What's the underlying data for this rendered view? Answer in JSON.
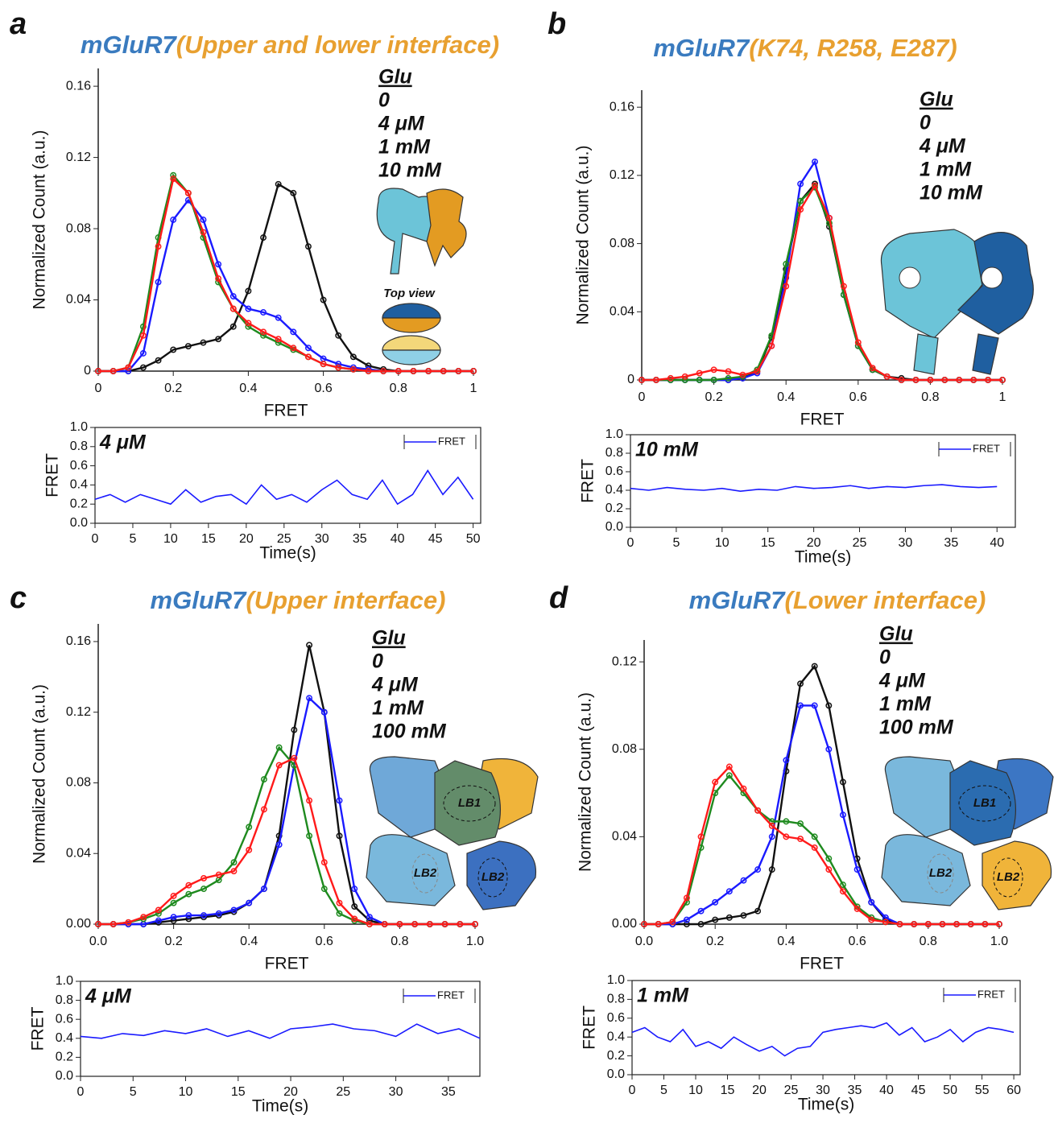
{
  "chart_data": [
    {
      "type": "line",
      "panel": "a",
      "title": "mGluR7",
      "title_color": "#3a7bbf",
      "title_detail": "(Upper and lower interface)",
      "title_detail_color": "#e8a030",
      "xlabel": "FRET",
      "ylabel": "Normalized Count (a.u.)",
      "legend_title": "Glu",
      "annotations": [
        "Top view"
      ],
      "x": [
        0,
        0.04,
        0.08,
        0.12,
        0.16,
        0.2,
        0.24,
        0.28,
        0.32,
        0.36,
        0.4,
        0.44,
        0.48,
        0.52,
        0.56,
        0.6,
        0.64,
        0.68,
        0.72,
        0.76,
        0.8,
        0.84,
        0.88,
        0.92,
        0.96,
        1
      ],
      "xlim": [
        0,
        1
      ],
      "xticks": [
        0,
        0.2,
        0.4,
        0.6,
        0.8,
        1
      ],
      "ylim": [
        0,
        0.17
      ],
      "yticks": [
        0,
        0.04,
        0.08,
        0.12,
        0.16
      ],
      "series": [
        {
          "name": "0",
          "color": "#111111",
          "values": [
            0,
            0,
            0,
            0.002,
            0.006,
            0.012,
            0.014,
            0.016,
            0.018,
            0.025,
            0.045,
            0.075,
            0.105,
            0.1,
            0.07,
            0.04,
            0.02,
            0.008,
            0.003,
            0.001,
            0,
            0,
            0,
            0,
            0,
            0
          ]
        },
        {
          "name": "4 μM",
          "color": "#1a1aff",
          "values": [
            0,
            0,
            0,
            0.01,
            0.05,
            0.085,
            0.096,
            0.085,
            0.06,
            0.042,
            0.035,
            0.033,
            0.03,
            0.022,
            0.013,
            0.007,
            0.004,
            0.002,
            0.001,
            0,
            0,
            0,
            0,
            0,
            0,
            0
          ]
        },
        {
          "name": "1 mM",
          "color": "#1e8a1e",
          "values": [
            0,
            0,
            0.002,
            0.025,
            0.075,
            0.11,
            0.1,
            0.075,
            0.05,
            0.035,
            0.025,
            0.02,
            0.016,
            0.012,
            0.008,
            0.004,
            0.002,
            0.001,
            0,
            0,
            0,
            0,
            0,
            0,
            0,
            0
          ]
        },
        {
          "name": "10 mM",
          "color": "#ff1a1a",
          "values": [
            0,
            0,
            0.002,
            0.02,
            0.07,
            0.108,
            0.1,
            0.078,
            0.052,
            0.035,
            0.027,
            0.022,
            0.018,
            0.013,
            0.008,
            0.004,
            0.002,
            0.001,
            0,
            0,
            0,
            0,
            0,
            0,
            0,
            0
          ]
        }
      ]
    },
    {
      "type": "trace",
      "label": "4 μM",
      "label_color": "#3a4fc0",
      "xlabel": "Time(s)",
      "ylabel": "FRET",
      "x": [
        0,
        2,
        4,
        6,
        8,
        10,
        12,
        14,
        16,
        18,
        20,
        22,
        24,
        26,
        28,
        30,
        32,
        34,
        36,
        38,
        40,
        42,
        44,
        46,
        48,
        50
      ],
      "xlim": [
        0,
        51
      ],
      "xticks": [
        0,
        5,
        10,
        15,
        20,
        25,
        30,
        35,
        40,
        45,
        50
      ],
      "ylim": [
        0,
        1
      ],
      "yticks": [
        {
          "value": 0,
          "label": "0.0"
        },
        0.2,
        0.4,
        0.6,
        0.8,
        {
          "value": 1,
          "label": "1.0"
        }
      ],
      "series": [
        {
          "name": "FRET",
          "color": "#1a1aff",
          "values": [
            0.25,
            0.3,
            0.22,
            0.3,
            0.25,
            0.2,
            0.35,
            0.22,
            0.28,
            0.3,
            0.2,
            0.4,
            0.25,
            0.3,
            0.22,
            0.35,
            0.45,
            0.3,
            0.25,
            0.45,
            0.2,
            0.3,
            0.55,
            0.3,
            0.48,
            0.25
          ]
        }
      ]
    },
    {
      "type": "line",
      "panel": "b",
      "title": "mGluR7",
      "title_color": "#3a7bbf",
      "title_detail": "(K74, R258, E287)",
      "title_detail_color": "#e8a030",
      "xlabel": "FRET",
      "ylabel": "Normalized Count (a.u.)",
      "legend_title": "Glu",
      "annotations": [],
      "x": [
        0,
        0.04,
        0.08,
        0.12,
        0.16,
        0.2,
        0.24,
        0.28,
        0.32,
        0.36,
        0.4,
        0.44,
        0.48,
        0.52,
        0.56,
        0.6,
        0.64,
        0.68,
        0.72,
        0.76,
        0.8,
        0.84,
        0.88,
        0.92,
        0.96,
        1
      ],
      "xlim": [
        0,
        1
      ],
      "xticks": [
        0,
        0.2,
        0.4,
        0.6,
        0.8,
        1
      ],
      "ylim": [
        0,
        0.17
      ],
      "yticks": [
        0,
        0.04,
        0.08,
        0.12,
        0.16
      ],
      "series": [
        {
          "name": "0",
          "color": "#111111",
          "values": [
            0,
            0,
            0,
            0,
            0,
            0,
            0,
            0.001,
            0.005,
            0.025,
            0.065,
            0.105,
            0.115,
            0.09,
            0.05,
            0.02,
            0.006,
            0.002,
            0.001,
            0,
            0,
            0,
            0,
            0,
            0,
            0
          ]
        },
        {
          "name": "4 μM",
          "color": "#1a1aff",
          "values": [
            0,
            0,
            0,
            0,
            0,
            0,
            0,
            0.001,
            0.004,
            0.02,
            0.06,
            0.115,
            0.128,
            0.095,
            0.05,
            0.02,
            0.006,
            0.002,
            0,
            0,
            0,
            0,
            0,
            0,
            0,
            0
          ]
        },
        {
          "name": "1 mM",
          "color": "#1e8a1e",
          "values": [
            0,
            0,
            0,
            0,
            0,
            0,
            0.001,
            0.002,
            0.006,
            0.026,
            0.068,
            0.105,
            0.113,
            0.092,
            0.05,
            0.02,
            0.006,
            0.002,
            0,
            0,
            0,
            0,
            0,
            0,
            0,
            0
          ]
        },
        {
          "name": "10 mM",
          "color": "#ff1a1a",
          "values": [
            0,
            0,
            0.001,
            0.002,
            0.004,
            0.006,
            0.005,
            0.003,
            0.005,
            0.02,
            0.055,
            0.1,
            0.114,
            0.095,
            0.055,
            0.022,
            0.007,
            0.002,
            0,
            0,
            0,
            0,
            0,
            0,
            0,
            0
          ]
        }
      ]
    },
    {
      "type": "trace",
      "label": "10 mM",
      "label_color": "#ff1a1a",
      "xlabel": "Time(s)",
      "ylabel": "FRET",
      "x": [
        0,
        2,
        4,
        6,
        8,
        10,
        12,
        14,
        16,
        18,
        20,
        22,
        24,
        26,
        28,
        30,
        32,
        34,
        36,
        38,
        40
      ],
      "xlim": [
        0,
        42
      ],
      "xticks": [
        0,
        5,
        10,
        15,
        20,
        25,
        30,
        35,
        40
      ],
      "ylim": [
        0,
        1
      ],
      "yticks": [
        {
          "value": 0,
          "label": "0.0"
        },
        0.2,
        0.4,
        0.6,
        0.8,
        {
          "value": 1,
          "label": "1.0"
        }
      ],
      "series": [
        {
          "name": "FRET",
          "color": "#1a1aff",
          "values": [
            0.42,
            0.4,
            0.43,
            0.41,
            0.4,
            0.42,
            0.39,
            0.41,
            0.4,
            0.44,
            0.42,
            0.43,
            0.45,
            0.42,
            0.44,
            0.43,
            0.45,
            0.46,
            0.44,
            0.43,
            0.44
          ]
        }
      ]
    },
    {
      "type": "line",
      "panel": "c",
      "title": "mGluR7",
      "title_color": "#3a7bbf",
      "title_detail": "(Upper interface)",
      "title_detail_color": "#e8a030",
      "xlabel": "FRET",
      "ylabel": "Normalized Count (a.u.)",
      "legend_title": "Glu",
      "annotations": [
        "LB1",
        "LB2",
        "LB2"
      ],
      "x": [
        0,
        0.04,
        0.08,
        0.12,
        0.16,
        0.2,
        0.24,
        0.28,
        0.32,
        0.36,
        0.4,
        0.44,
        0.48,
        0.52,
        0.56,
        0.6,
        0.64,
        0.68,
        0.72,
        0.76,
        0.8,
        0.84,
        0.88,
        0.92,
        0.96,
        1
      ],
      "xlim": [
        0,
        1
      ],
      "xticks": [
        {
          "value": 0,
          "label": "0.0"
        },
        0.2,
        0.4,
        0.6,
        0.8,
        {
          "value": 1,
          "label": "1.0"
        }
      ],
      "ylim": [
        0,
        0.17
      ],
      "yticks": [
        {
          "value": 0,
          "label": "0.00"
        },
        0.04,
        0.08,
        0.12,
        0.16
      ],
      "series": [
        {
          "name": "0",
          "color": "#111111",
          "values": [
            0,
            0,
            0,
            0,
            0.001,
            0.002,
            0.003,
            0.004,
            0.005,
            0.007,
            0.012,
            0.02,
            0.05,
            0.11,
            0.158,
            0.12,
            0.05,
            0.01,
            0.002,
            0,
            0,
            0,
            0,
            0,
            0,
            0
          ]
        },
        {
          "name": "4 μM",
          "color": "#1a1aff",
          "values": [
            0,
            0,
            0,
            0,
            0.002,
            0.004,
            0.005,
            0.005,
            0.006,
            0.008,
            0.012,
            0.02,
            0.045,
            0.09,
            0.128,
            0.12,
            0.07,
            0.02,
            0.004,
            0,
            0,
            0,
            0,
            0,
            0,
            0
          ]
        },
        {
          "name": "1 mM",
          "color": "#1e8a1e",
          "values": [
            0,
            0,
            0.001,
            0.003,
            0.006,
            0.012,
            0.017,
            0.02,
            0.025,
            0.035,
            0.055,
            0.082,
            0.1,
            0.09,
            0.05,
            0.02,
            0.006,
            0.002,
            0,
            0,
            0,
            0,
            0,
            0,
            0,
            0
          ]
        },
        {
          "name": "100 mM",
          "color": "#ff1a1a",
          "values": [
            0,
            0,
            0.001,
            0.004,
            0.008,
            0.016,
            0.022,
            0.026,
            0.028,
            0.03,
            0.042,
            0.065,
            0.09,
            0.094,
            0.07,
            0.035,
            0.012,
            0.003,
            0,
            0,
            0,
            0,
            0,
            0,
            0,
            0
          ]
        }
      ]
    },
    {
      "type": "trace",
      "label": "4 μM",
      "label_color": "#3a4fc0",
      "xlabel": "Time(s)",
      "ylabel": "FRET",
      "x": [
        0,
        2,
        4,
        6,
        8,
        10,
        12,
        14,
        16,
        18,
        20,
        22,
        24,
        26,
        28,
        30,
        32,
        34,
        36,
        38
      ],
      "xlim": [
        0,
        38
      ],
      "xticks": [
        0,
        5,
        10,
        15,
        20,
        25,
        30,
        35
      ],
      "ylim": [
        0,
        1
      ],
      "yticks": [
        {
          "value": 0,
          "label": "0.0"
        },
        0.2,
        0.4,
        0.6,
        0.8,
        {
          "value": 1,
          "label": "1.0"
        }
      ],
      "series": [
        {
          "name": "FRET",
          "color": "#1a1aff",
          "values": [
            0.42,
            0.4,
            0.45,
            0.43,
            0.48,
            0.45,
            0.5,
            0.42,
            0.48,
            0.4,
            0.5,
            0.52,
            0.55,
            0.5,
            0.48,
            0.42,
            0.55,
            0.45,
            0.5,
            0.4
          ]
        }
      ]
    },
    {
      "type": "line",
      "panel": "d",
      "title": "mGluR7",
      "title_color": "#3a7bbf",
      "title_detail": "(Lower interface)",
      "title_detail_color": "#e8a030",
      "xlabel": "FRET",
      "ylabel": "Normalized Count (a.u.)",
      "legend_title": "Glu",
      "annotations": [
        "LB1",
        "LB2",
        "LB2"
      ],
      "x": [
        0,
        0.04,
        0.08,
        0.12,
        0.16,
        0.2,
        0.24,
        0.28,
        0.32,
        0.36,
        0.4,
        0.44,
        0.48,
        0.52,
        0.56,
        0.6,
        0.64,
        0.68,
        0.72,
        0.76,
        0.8,
        0.84,
        0.88,
        0.92,
        0.96,
        1
      ],
      "xlim": [
        0,
        1
      ],
      "xticks": [
        {
          "value": 0,
          "label": "0.0"
        },
        0.2,
        0.4,
        0.6,
        0.8,
        {
          "value": 1,
          "label": "1.0"
        }
      ],
      "ylim": [
        0,
        0.13
      ],
      "yticks": [
        {
          "value": 0,
          "label": "0.00"
        },
        0.04,
        0.08,
        0.12
      ],
      "series": [
        {
          "name": "0",
          "color": "#111111",
          "values": [
            0,
            0,
            0,
            0,
            0,
            0.002,
            0.003,
            0.004,
            0.006,
            0.025,
            0.07,
            0.11,
            0.118,
            0.1,
            0.065,
            0.03,
            0.01,
            0.002,
            0,
            0,
            0,
            0,
            0,
            0,
            0,
            0
          ]
        },
        {
          "name": "4 μM",
          "color": "#1a1aff",
          "values": [
            0,
            0,
            0,
            0.002,
            0.006,
            0.01,
            0.015,
            0.02,
            0.025,
            0.04,
            0.075,
            0.1,
            0.1,
            0.08,
            0.05,
            0.025,
            0.01,
            0.003,
            0,
            0,
            0,
            0,
            0,
            0,
            0,
            0
          ]
        },
        {
          "name": "1 mM",
          "color": "#1e8a1e",
          "values": [
            0,
            0,
            0.001,
            0.01,
            0.035,
            0.06,
            0.068,
            0.06,
            0.052,
            0.047,
            0.047,
            0.046,
            0.04,
            0.03,
            0.018,
            0.008,
            0.003,
            0.001,
            0,
            0,
            0,
            0,
            0,
            0,
            0,
            0
          ]
        },
        {
          "name": "100 mM",
          "color": "#ff1a1a",
          "values": [
            0,
            0,
            0.001,
            0.012,
            0.04,
            0.065,
            0.072,
            0.062,
            0.052,
            0.045,
            0.04,
            0.039,
            0.035,
            0.025,
            0.015,
            0.007,
            0.002,
            0.001,
            0,
            0,
            0,
            0,
            0,
            0,
            0,
            0
          ]
        }
      ]
    },
    {
      "type": "trace",
      "label": "1 mM",
      "label_color": "#1e8a1e",
      "xlabel": "Time(s)",
      "ylabel": "FRET",
      "x": [
        0,
        2,
        4,
        6,
        8,
        10,
        12,
        14,
        16,
        18,
        20,
        22,
        24,
        26,
        28,
        30,
        32,
        34,
        36,
        38,
        40,
        42,
        44,
        46,
        48,
        50,
        52,
        54,
        56,
        58,
        60
      ],
      "xlim": [
        0,
        61
      ],
      "xticks": [
        0,
        5,
        10,
        15,
        20,
        25,
        30,
        35,
        40,
        45,
        50,
        55,
        60
      ],
      "ylim": [
        0,
        1
      ],
      "yticks": [
        {
          "value": 0,
          "label": "0.0"
        },
        0.2,
        0.4,
        0.6,
        0.8,
        {
          "value": 1,
          "label": "1.0"
        }
      ],
      "series": [
        {
          "name": "FRET",
          "color": "#1a1aff",
          "values": [
            0.45,
            0.5,
            0.4,
            0.35,
            0.48,
            0.3,
            0.35,
            0.28,
            0.4,
            0.32,
            0.25,
            0.3,
            0.2,
            0.28,
            0.3,
            0.45,
            0.48,
            0.5,
            0.52,
            0.5,
            0.55,
            0.42,
            0.5,
            0.35,
            0.4,
            0.48,
            0.35,
            0.45,
            0.5,
            0.48,
            0.45
          ]
        }
      ]
    }
  ]
}
